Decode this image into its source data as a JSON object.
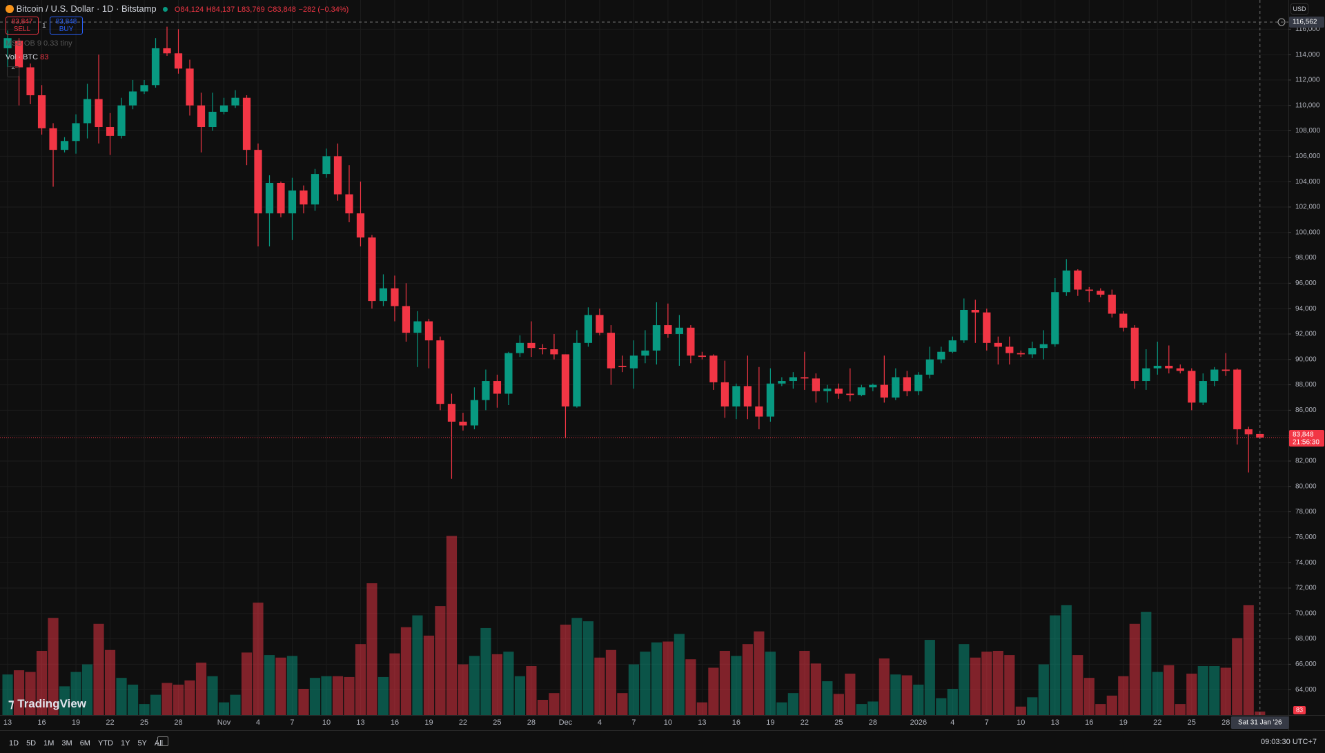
{
  "header": {
    "symbol": "Bitcoin / U.S. Dollar · 1D · Bitstamp",
    "ohlc": [
      "O84,124",
      "H84,137",
      "L83,769",
      "C83,848"
    ],
    "change": "−282 (−0.34%)"
  },
  "trade": {
    "sell_price": "83,847",
    "sell": "SELL",
    "quantity": "1",
    "buy_price": "83,848",
    "buy": "BUY"
  },
  "indicators": {
    "msb": "MSB OB 9 0.33 tiny",
    "volume": "Vol · BTC",
    "volume_value": "83"
  },
  "currency": "USD",
  "logo": "TradingView",
  "ranges": [
    "1D",
    "5D",
    "1M",
    "3M",
    "6M",
    "YTD",
    "1Y",
    "5Y",
    "All"
  ],
  "clock": "09:03:30 UTC+7",
  "chart_data": {
    "type": "candlestick",
    "grid": true,
    "up_color": "#089981",
    "down_color": "#f23645",
    "xlim": [
      -0.67,
      112.5
    ],
    "xticks": [
      {
        "value": 0,
        "label": "13"
      },
      {
        "value": 3,
        "label": "16"
      },
      {
        "value": 6,
        "label": "19"
      },
      {
        "value": 9,
        "label": "22"
      },
      {
        "value": 12,
        "label": "25"
      },
      {
        "value": 15,
        "label": "28"
      },
      {
        "value": 19,
        "label": "Nov"
      },
      {
        "value": 22,
        "label": "4"
      },
      {
        "value": 25,
        "label": "7"
      },
      {
        "value": 28,
        "label": "10"
      },
      {
        "value": 31,
        "label": "13"
      },
      {
        "value": 34,
        "label": "16"
      },
      {
        "value": 37,
        "label": "19"
      },
      {
        "value": 40,
        "label": "22"
      },
      {
        "value": 43,
        "label": "25"
      },
      {
        "value": 46,
        "label": "28"
      },
      {
        "value": 49,
        "label": "Dec"
      },
      {
        "value": 52,
        "label": "4"
      },
      {
        "value": 55,
        "label": "7"
      },
      {
        "value": 58,
        "label": "10"
      },
      {
        "value": 61,
        "label": "13"
      },
      {
        "value": 64,
        "label": "16"
      },
      {
        "value": 67,
        "label": "19"
      },
      {
        "value": 70,
        "label": "22"
      },
      {
        "value": 73,
        "label": "25"
      },
      {
        "value": 76,
        "label": "28"
      },
      {
        "value": 80,
        "label": "2026"
      },
      {
        "value": 83,
        "label": "4"
      },
      {
        "value": 86,
        "label": "7"
      },
      {
        "value": 89,
        "label": "10"
      },
      {
        "value": 92,
        "label": "13"
      },
      {
        "value": 95,
        "label": "16"
      },
      {
        "value": 98,
        "label": "19"
      },
      {
        "value": 101,
        "label": "22"
      },
      {
        "value": 104,
        "label": "25"
      },
      {
        "value": 107,
        "label": "28"
      }
    ],
    "ylim": [
      62000,
      118300
    ],
    "yticks": [
      {
        "value": 64000,
        "label": "64,000"
      },
      {
        "value": 66000,
        "label": "66,000"
      },
      {
        "value": 68000,
        "label": "68,000"
      },
      {
        "value": 70000,
        "label": "70,000"
      },
      {
        "value": 72000,
        "label": "72,000"
      },
      {
        "value": 74000,
        "label": "74,000"
      },
      {
        "value": 76000,
        "label": "76,000"
      },
      {
        "value": 78000,
        "label": "78,000"
      },
      {
        "value": 80000,
        "label": "80,000"
      },
      {
        "value": 82000,
        "label": "82,000"
      },
      {
        "value": 84000,
        "label": "84,000"
      },
      {
        "value": 86000,
        "label": "86,000"
      },
      {
        "value": 88000,
        "label": "88,000"
      },
      {
        "value": 90000,
        "label": "90,000"
      },
      {
        "value": 92000,
        "label": "92,000"
      },
      {
        "value": 94000,
        "label": "94,000"
      },
      {
        "value": 96000,
        "label": "96,000"
      },
      {
        "value": 98000,
        "label": "98,000"
      },
      {
        "value": 100000,
        "label": "100,000"
      },
      {
        "value": 102000,
        "label": "102,000"
      },
      {
        "value": 104000,
        "label": "104,000"
      },
      {
        "value": 106000,
        "label": "106,000"
      },
      {
        "value": 108000,
        "label": "108,000"
      },
      {
        "value": 110000,
        "label": "110,000"
      },
      {
        "value": 112000,
        "label": "112,000"
      },
      {
        "value": 114000,
        "label": "114,000"
      },
      {
        "value": 116000,
        "label": "116,000"
      }
    ],
    "open": [
      114500,
      115100,
      113000,
      110800,
      108200,
      106500,
      107200,
      108600,
      110500,
      108300,
      107600,
      110000,
      111100,
      111600,
      114500,
      114100,
      112900,
      110000,
      108300,
      109500,
      110000,
      110600,
      106500,
      101500,
      103900,
      101500,
      103300,
      102200,
      104600,
      106000,
      103000,
      101500,
      99600,
      94600,
      95600,
      94200,
      92100,
      93000,
      91500,
      86500,
      85100,
      84800,
      86800,
      88300,
      87300,
      90500,
      91300,
      90900,
      90800,
      90400,
      86300,
      91300,
      93500,
      92100,
      89500,
      89300,
      90300,
      90700,
      92700,
      92000,
      92500,
      90300,
      90300,
      88200,
      86300,
      87900,
      86300,
      85500,
      88100,
      88300,
      88600,
      88500,
      87500,
      87700,
      87300,
      87200,
      87800,
      88000,
      87000,
      88600,
      87500,
      88800,
      90000,
      90600,
      91500,
      93900,
      93700,
      91300,
      91000,
      90500,
      90400,
      90900,
      91200,
      95300,
      97000,
      95500,
      95400,
      95100,
      93600,
      92500,
      88300,
      89300,
      89500,
      89300,
      89100,
      86600,
      88300,
      89200,
      89200,
      84500,
      84124
    ],
    "high": [
      115900,
      115300,
      113300,
      111600,
      108600,
      107500,
      109300,
      111700,
      114000,
      109400,
      110600,
      112000,
      112000,
      115300,
      116200,
      116000,
      113600,
      111000,
      111000,
      110600,
      111200,
      110800,
      107000,
      104500,
      104000,
      104300,
      103700,
      105000,
      106600,
      107000,
      105300,
      104000,
      99800,
      96700,
      96600,
      96000,
      93800,
      93200,
      91800,
      87300,
      85800,
      87800,
      89200,
      88800,
      90600,
      91900,
      93000,
      91200,
      92000,
      90400,
      92300,
      94100,
      94000,
      92700,
      90300,
      91500,
      92300,
      94500,
      94400,
      93500,
      92700,
      90600,
      90400,
      89900,
      88100,
      90300,
      89400,
      89300,
      88600,
      89000,
      90600,
      88900,
      88000,
      88100,
      89300,
      88000,
      88100,
      90300,
      89300,
      89100,
      89000,
      91000,
      91000,
      91800,
      94800,
      94700,
      94000,
      91800,
      91800,
      90700,
      91400,
      92300,
      96400,
      97900,
      97100,
      95700,
      95600,
      95500,
      93800,
      92700,
      90800,
      91400,
      91100,
      89600,
      89300,
      88900,
      89400,
      90500,
      89300,
      84700,
      84137
    ],
    "low": [
      113000,
      110000,
      110100,
      107700,
      103600,
      106300,
      106200,
      107400,
      107000,
      106100,
      107400,
      109700,
      110900,
      111400,
      113900,
      112500,
      109200,
      106300,
      108000,
      109300,
      109800,
      105300,
      98900,
      98900,
      101200,
      99400,
      101500,
      101700,
      104300,
      102500,
      100800,
      98900,
      94000,
      94200,
      93000,
      91400,
      89400,
      89300,
      86000,
      80600,
      84400,
      84500,
      86000,
      86200,
      86400,
      90200,
      90200,
      90400,
      90000,
      83800,
      86200,
      91000,
      91900,
      88000,
      89000,
      87700,
      89700,
      89600,
      91700,
      89500,
      89700,
      90000,
      87600,
      85400,
      85300,
      85300,
      84500,
      85100,
      87900,
      87700,
      87600,
      86600,
      86600,
      86900,
      86700,
      87100,
      87500,
      86600,
      86800,
      87100,
      87200,
      88500,
      89700,
      90500,
      91300,
      91300,
      90700,
      89600,
      89600,
      90200,
      90100,
      90000,
      91000,
      95000,
      95000,
      94500,
      94900,
      93300,
      92200,
      87700,
      87600,
      88800,
      88900,
      88900,
      86000,
      86400,
      87900,
      88700,
      83300,
      81100,
      83769
    ],
    "close": [
      115300,
      113000,
      110800,
      108200,
      106500,
      107200,
      108600,
      110500,
      108300,
      107600,
      110000,
      111100,
      111600,
      114500,
      114100,
      112900,
      110000,
      108300,
      109500,
      110000,
      110600,
      106500,
      101500,
      103900,
      101500,
      103300,
      102200,
      104600,
      106000,
      103000,
      101500,
      99600,
      94600,
      95600,
      94200,
      92100,
      93000,
      91500,
      86500,
      85100,
      84800,
      86800,
      88300,
      87300,
      90500,
      91300,
      90900,
      90800,
      90400,
      86300,
      91300,
      93500,
      92100,
      89300,
      89400,
      90300,
      90700,
      92700,
      92000,
      92500,
      90300,
      90200,
      88200,
      86300,
      87900,
      86300,
      85500,
      88100,
      88300,
      88600,
      88500,
      87500,
      87700,
      87300,
      87200,
      87800,
      88000,
      87000,
      88600,
      87500,
      88800,
      90000,
      90600,
      91500,
      93900,
      93700,
      91300,
      91000,
      90500,
      90400,
      90900,
      91200,
      95300,
      97000,
      95500,
      95400,
      95100,
      93600,
      92500,
      88300,
      89300,
      89500,
      89300,
      89100,
      86600,
      88300,
      89200,
      89100,
      84500,
      84100,
      83848
    ],
    "volume": [
      960,
      1060,
      1020,
      1520,
      2300,
      680,
      1020,
      1200,
      2160,
      1540,
      880,
      720,
      260,
      480,
      760,
      720,
      820,
      1240,
      920,
      300,
      480,
      1480,
      2660,
      1420,
      1360,
      1400,
      620,
      880,
      920,
      920,
      900,
      1680,
      3120,
      900,
      1460,
      2080,
      2360,
      1880,
      2580,
      4240,
      1200,
      1400,
      2060,
      1440,
      1500,
      920,
      1160,
      360,
      520,
      2140,
      2300,
      2220,
      1360,
      1540,
      520,
      1200,
      1500,
      1720,
      1740,
      1920,
      1320,
      300,
      1120,
      1520,
      1400,
      1680,
      1980,
      1500,
      300,
      520,
      1520,
      1220,
      800,
      500,
      980,
      260,
      320,
      1340,
      960,
      940,
      720,
      1780,
      400,
      620,
      1680,
      1360,
      1500,
      1520,
      1420,
      200,
      420,
      1200,
      2360,
      2600,
      1420,
      880,
      260,
      460,
      920,
      2160,
      2440,
      1020,
      1180,
      260,
      980,
      1160,
      1160,
      1120,
      1820,
      2600,
      83
    ],
    "volume_ylim": [
      0,
      5000
    ],
    "crosshair": {
      "index": 110,
      "price": 116562,
      "price_label": "116,562",
      "date_label": "Sat 31 Jan '26"
    },
    "last_price": {
      "value": 83848,
      "label": "83,848",
      "countdown": "21:56:30"
    },
    "volume_last_label": "83"
  }
}
